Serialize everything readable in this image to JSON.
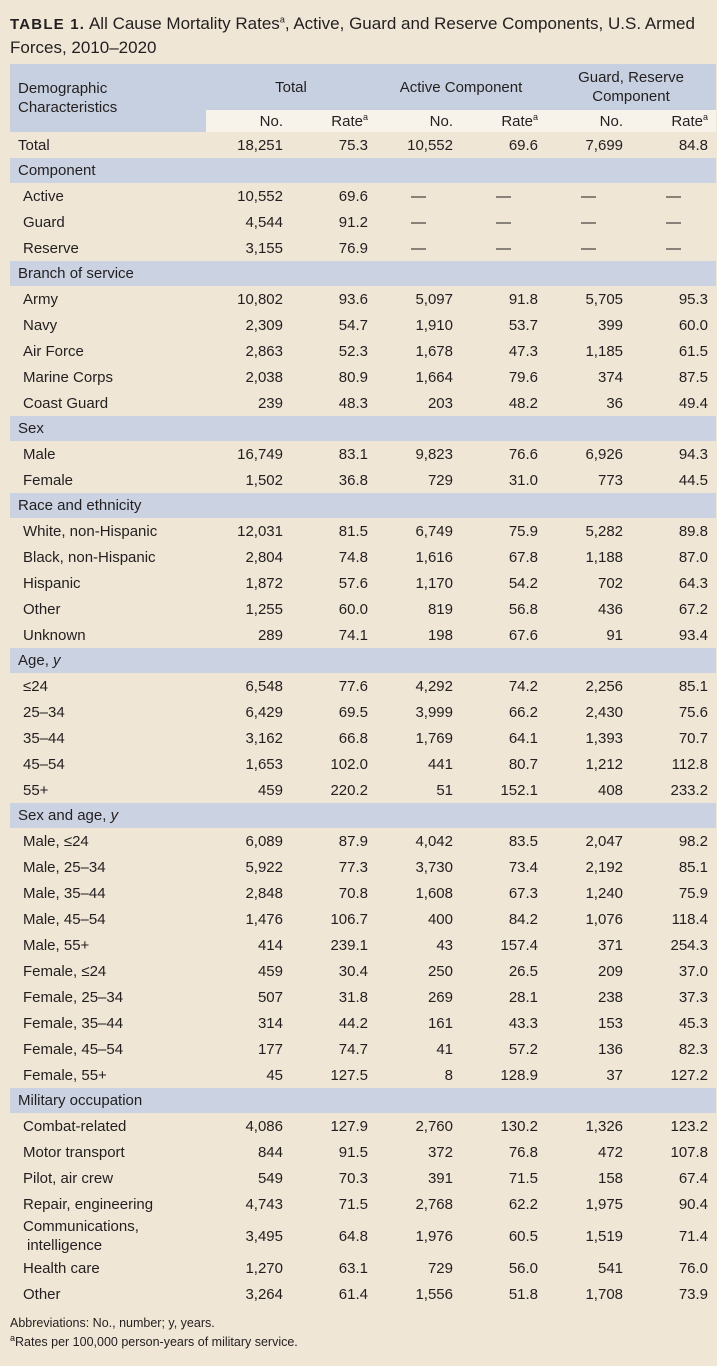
{
  "title": {
    "label": "TABLE 1.",
    "text_before": " All Cause Mortality Rates",
    "sup": "a",
    "text_after": ", Active, Guard and Reserve Components, U.S. Armed Forces, 2010–2020"
  },
  "header": {
    "demo": "Demographic Characteristics",
    "total": "Total",
    "active": "Active Component",
    "guard_reserve": "Guard, Reserve Component",
    "no": "No.",
    "rate": "Rate",
    "rate_sup": "a"
  },
  "rows": [
    {
      "type": "total",
      "label": "Total",
      "values": [
        "18,251",
        "75.3",
        "10,552",
        "69.6",
        "7,699",
        "84.8"
      ]
    },
    {
      "type": "section",
      "label": "Component"
    },
    {
      "type": "row",
      "label": "Active",
      "values": [
        "10,552",
        "69.6",
        "—",
        "—",
        "—",
        "—"
      ]
    },
    {
      "type": "row",
      "label": "Guard",
      "values": [
        "4,544",
        "91.2",
        "—",
        "—",
        "—",
        "—"
      ]
    },
    {
      "type": "row",
      "label": "Reserve",
      "values": [
        "3,155",
        "76.9",
        "—",
        "—",
        "—",
        "—"
      ]
    },
    {
      "type": "section",
      "label": "Branch of service"
    },
    {
      "type": "row",
      "label": "Army",
      "values": [
        "10,802",
        "93.6",
        "5,097",
        "91.8",
        "5,705",
        "95.3"
      ]
    },
    {
      "type": "row",
      "label": "Navy",
      "values": [
        "2,309",
        "54.7",
        "1,910",
        "53.7",
        "399",
        "60.0"
      ]
    },
    {
      "type": "row",
      "label": "Air Force",
      "values": [
        "2,863",
        "52.3",
        "1,678",
        "47.3",
        "1,185",
        "61.5"
      ]
    },
    {
      "type": "row",
      "label": "Marine Corps",
      "values": [
        "2,038",
        "80.9",
        "1,664",
        "79.6",
        "374",
        "87.5"
      ]
    },
    {
      "type": "row",
      "label": "Coast Guard",
      "values": [
        "239",
        "48.3",
        "203",
        "48.2",
        "36",
        "49.4"
      ]
    },
    {
      "type": "section",
      "label": "Sex"
    },
    {
      "type": "row",
      "label": "Male",
      "values": [
        "16,749",
        "83.1",
        "9,823",
        "76.6",
        "6,926",
        "94.3"
      ]
    },
    {
      "type": "row",
      "label": "Female",
      "values": [
        "1,502",
        "36.8",
        "729",
        "31.0",
        "773",
        "44.5"
      ]
    },
    {
      "type": "section",
      "label": "Race and ethnicity"
    },
    {
      "type": "row",
      "label": "White, non-Hispanic",
      "values": [
        "12,031",
        "81.5",
        "6,749",
        "75.9",
        "5,282",
        "89.8"
      ]
    },
    {
      "type": "row",
      "label": "Black, non-Hispanic",
      "values": [
        "2,804",
        "74.8",
        "1,616",
        "67.8",
        "1,188",
        "87.0"
      ]
    },
    {
      "type": "row",
      "label": "Hispanic",
      "values": [
        "1,872",
        "57.6",
        "1,170",
        "54.2",
        "702",
        "64.3"
      ]
    },
    {
      "type": "row",
      "label": "Other",
      "values": [
        "1,255",
        "60.0",
        "819",
        "56.8",
        "436",
        "67.2"
      ]
    },
    {
      "type": "row",
      "label": "Unknown",
      "values": [
        "289",
        "74.1",
        "198",
        "67.6",
        "91",
        "93.4"
      ]
    },
    {
      "type": "section",
      "label": "Age, ",
      "italic": "y"
    },
    {
      "type": "row",
      "label": "≤24",
      "values": [
        "6,548",
        "77.6",
        "4,292",
        "74.2",
        "2,256",
        "85.1"
      ]
    },
    {
      "type": "row",
      "label": "25–34",
      "values": [
        "6,429",
        "69.5",
        "3,999",
        "66.2",
        "2,430",
        "75.6"
      ]
    },
    {
      "type": "row",
      "label": "35–44",
      "values": [
        "3,162",
        "66.8",
        "1,769",
        "64.1",
        "1,393",
        "70.7"
      ]
    },
    {
      "type": "row",
      "label": "45–54",
      "values": [
        "1,653",
        "102.0",
        "441",
        "80.7",
        "1,212",
        "112.8"
      ]
    },
    {
      "type": "row",
      "label": "55+",
      "values": [
        "459",
        "220.2",
        "51",
        "152.1",
        "408",
        "233.2"
      ]
    },
    {
      "type": "section",
      "label": "Sex and age, ",
      "italic": "y"
    },
    {
      "type": "row",
      "label": "Male, ≤24",
      "values": [
        "6,089",
        "87.9",
        "4,042",
        "83.5",
        "2,047",
        "98.2"
      ]
    },
    {
      "type": "row",
      "label": "Male, 25–34",
      "values": [
        "5,922",
        "77.3",
        "3,730",
        "73.4",
        "2,192",
        "85.1"
      ]
    },
    {
      "type": "row",
      "label": "Male, 35–44",
      "values": [
        "2,848",
        "70.8",
        "1,608",
        "67.3",
        "1,240",
        "75.9"
      ]
    },
    {
      "type": "row",
      "label": "Male, 45–54",
      "values": [
        "1,476",
        "106.7",
        "400",
        "84.2",
        "1,076",
        "118.4"
      ]
    },
    {
      "type": "row",
      "label": "Male, 55+",
      "values": [
        "414",
        "239.1",
        "43",
        "157.4",
        "371",
        "254.3"
      ]
    },
    {
      "type": "row",
      "label": "Female, ≤24",
      "values": [
        "459",
        "30.4",
        "250",
        "26.5",
        "209",
        "37.0"
      ]
    },
    {
      "type": "row",
      "label": "Female, 25–34",
      "values": [
        "507",
        "31.8",
        "269",
        "28.1",
        "238",
        "37.3"
      ]
    },
    {
      "type": "row",
      "label": "Female, 35–44",
      "values": [
        "314",
        "44.2",
        "161",
        "43.3",
        "153",
        "45.3"
      ]
    },
    {
      "type": "row",
      "label": "Female, 45–54",
      "values": [
        "177",
        "74.7",
        "41",
        "57.2",
        "136",
        "82.3"
      ]
    },
    {
      "type": "row",
      "label": "Female, 55+",
      "values": [
        "45",
        "127.5",
        "8",
        "128.9",
        "37",
        "127.2"
      ]
    },
    {
      "type": "section",
      "label": "Military occupation"
    },
    {
      "type": "row",
      "label": "Combat-related",
      "values": [
        "4,086",
        "127.9",
        "2,760",
        "130.2",
        "1,326",
        "123.2"
      ]
    },
    {
      "type": "row",
      "label": "Motor transport",
      "values": [
        "844",
        "91.5",
        "372",
        "76.8",
        "472",
        "107.8"
      ]
    },
    {
      "type": "row",
      "label": "Pilot, air crew",
      "values": [
        "549",
        "70.3",
        "391",
        "71.5",
        "158",
        "67.4"
      ]
    },
    {
      "type": "row",
      "label": "Repair, engineering",
      "values": [
        "4,743",
        "71.5",
        "2,768",
        "62.2",
        "1,975",
        "90.4"
      ]
    },
    {
      "type": "row",
      "two": true,
      "label": "Communications,",
      "label2": "intelligence",
      "values": [
        "3,495",
        "64.8",
        "1,976",
        "60.5",
        "1,519",
        "71.4"
      ]
    },
    {
      "type": "row",
      "label": "Health care",
      "values": [
        "1,270",
        "63.1",
        "729",
        "56.0",
        "541",
        "76.0"
      ]
    },
    {
      "type": "row",
      "label": "Other",
      "values": [
        "3,264",
        "61.4",
        "1,556",
        "51.8",
        "1,708",
        "73.9"
      ]
    }
  ],
  "footnotes": {
    "abbreviations": "Abbreviations: No., number; y, years.",
    "a_sup": "a",
    "a_text": "Rates per 100,000 person-years of military service."
  }
}
